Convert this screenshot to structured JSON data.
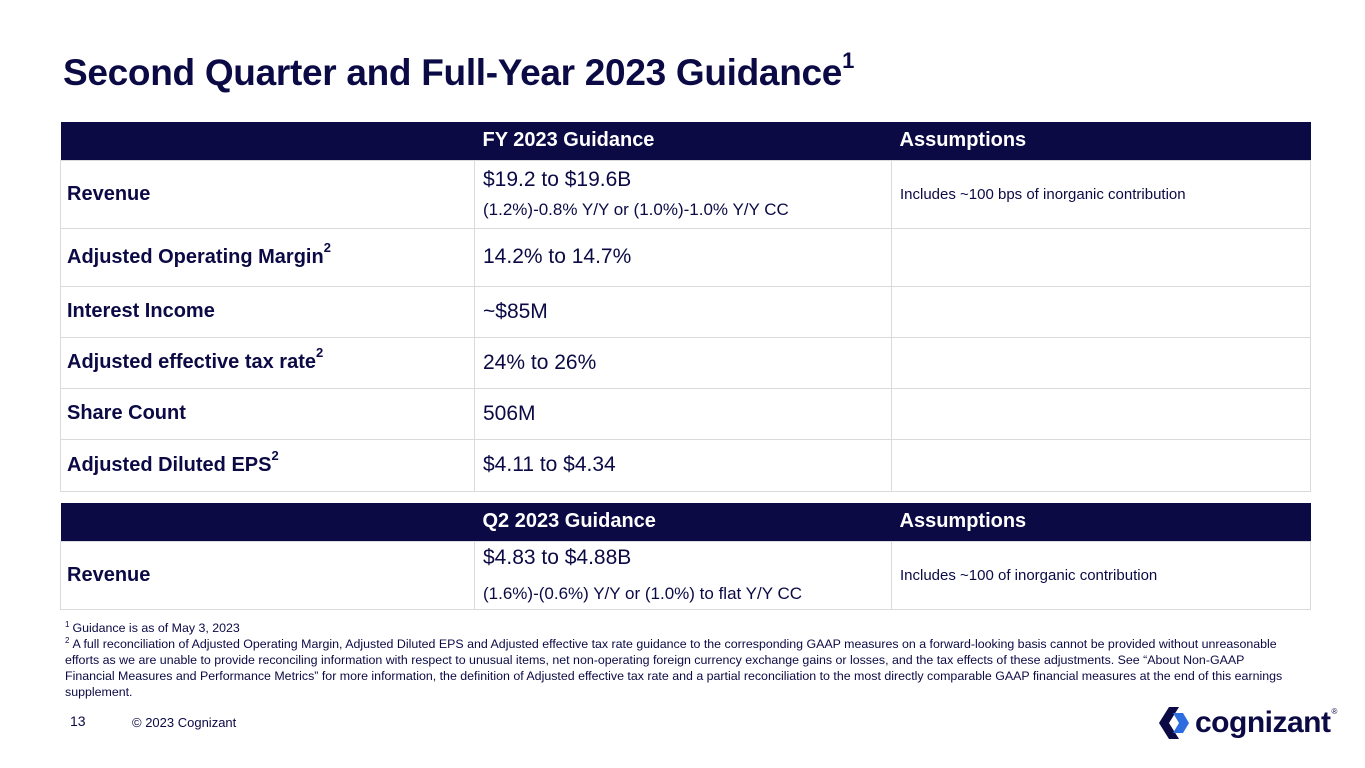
{
  "slide": {
    "title": "Second Quarter and Full-Year 2023 Guidance",
    "title_note": "1",
    "page_number": "13",
    "copyright": "© 2023 Cognizant",
    "logo_text": "cognizant",
    "logo_reg": "®"
  },
  "fy_table": {
    "headers": [
      "",
      "FY 2023 Guidance",
      "Assumptions"
    ],
    "rows": [
      {
        "metric": "Revenue",
        "note": "",
        "value": "$19.2 to $19.6B",
        "value_sub": "(1.2%)-0.8% Y/Y or (1.0%)-1.0% Y/Y CC",
        "assumption": "Includes ~100 bps of inorganic contribution"
      },
      {
        "metric": "Adjusted Operating Margin",
        "note": "2",
        "value": "14.2% to 14.7%",
        "value_sub": "",
        "assumption": ""
      },
      {
        "metric": "Interest Income",
        "note": "",
        "value": "~$85M",
        "value_sub": "",
        "assumption": ""
      },
      {
        "metric": "Adjusted effective tax rate",
        "note": "2",
        "value": "24% to 26%",
        "value_sub": "",
        "assumption": ""
      },
      {
        "metric": "Share Count",
        "note": "",
        "value": "506M",
        "value_sub": "",
        "assumption": ""
      },
      {
        "metric": "Adjusted Diluted EPS",
        "note": "2",
        "value": "$4.11 to $4.34",
        "value_sub": "",
        "assumption": ""
      }
    ]
  },
  "q2_table": {
    "headers": [
      "",
      "Q2 2023 Guidance",
      "Assumptions"
    ],
    "rows": [
      {
        "metric": "Revenue",
        "value": "$4.83 to $4.88B",
        "value_sub": "(1.6%)-(0.6%) Y/Y or (1.0%) to flat Y/Y CC",
        "assumption": "Includes ~100 of inorganic contribution"
      }
    ]
  },
  "footnotes": [
    {
      "marker": "1",
      "text": "Guidance is as of May 3, 2023"
    },
    {
      "marker": "2",
      "text": "A full reconciliation of Adjusted Operating Margin, Adjusted Diluted EPS and Adjusted effective tax rate guidance to the corresponding GAAP measures on a forward-looking basis cannot be provided without unreasonable  efforts as we are unable to provide reconciling information with respect to unusual items, net non-operating foreign currency exchange gains or losses, and the tax effects of these adjustments. See “About Non-GAAP Financial Measures and Performance Metrics” for more information, the definition of Adjusted effective tax rate and a partial reconciliation to the most directly comparable GAAP financial measures at the end of this earnings supplement."
    }
  ],
  "colors": {
    "navy": "#0b0a45",
    "logo_blue": "#2e6de0",
    "logo_dark": "#0b0a45",
    "border": "#d9d9de"
  }
}
